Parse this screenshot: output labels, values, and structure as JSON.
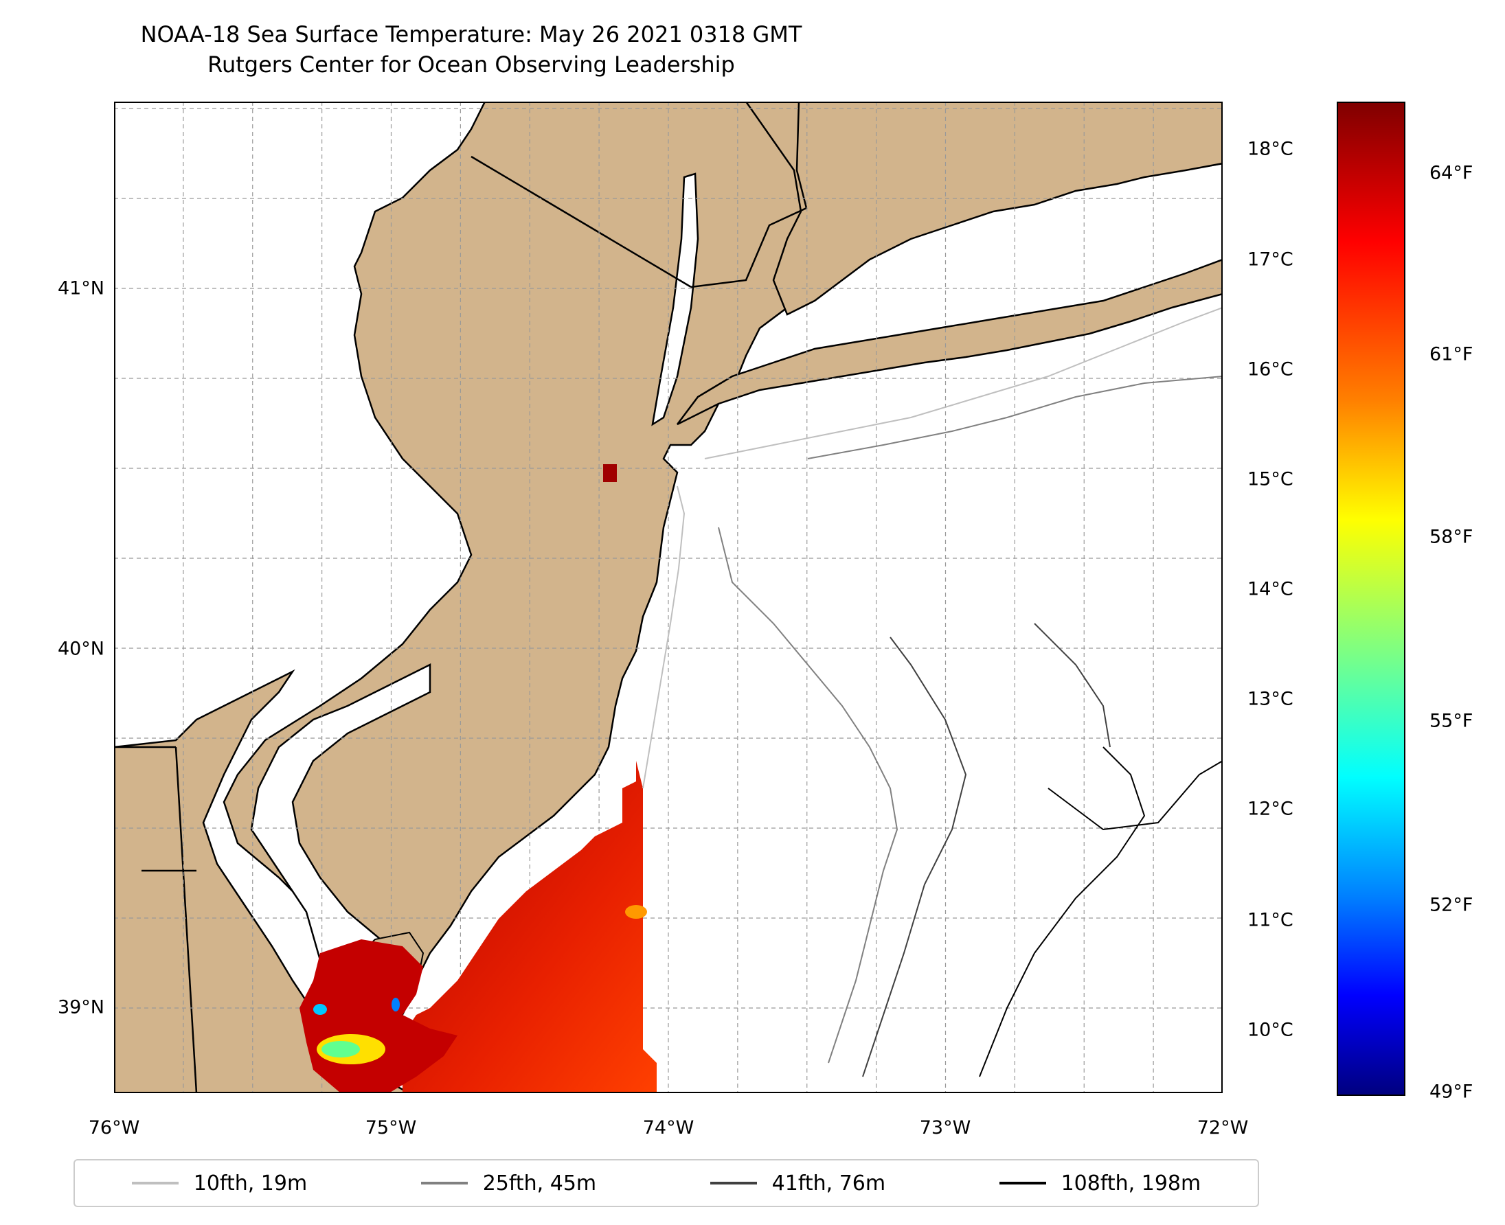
{
  "title": {
    "line1": "NOAA-18 Sea Surface Temperature: May 26 2021 0318 GMT",
    "line2": "Rutgers Center for Ocean Observing Leadership"
  },
  "map": {
    "land_color": "#d2b48c",
    "water_color": "#ffffff",
    "lon_range": [
      -76,
      -72
    ],
    "lat_range": [
      38.7,
      41.5
    ],
    "lon_ticks": [
      "76°W",
      "75°W",
      "74°W",
      "73°W",
      "72°W"
    ],
    "lat_ticks": [
      "41°N",
      "40°N",
      "39°N"
    ]
  },
  "colorbar": {
    "colormap": "jet",
    "celsius_ticks": [
      "18°C",
      "17°C",
      "16°C",
      "15°C",
      "14°C",
      "13°C",
      "12°C",
      "11°C",
      "10°C"
    ],
    "fahrenheit_ticks": [
      "64°F",
      "61°F",
      "58°F",
      "55°F",
      "52°F",
      "49°F"
    ]
  },
  "legend": {
    "items": [
      {
        "label": "10fth, 19m",
        "color": "#bfbfbf"
      },
      {
        "label": "25fth, 45m",
        "color": "#808080"
      },
      {
        "label": "41fth, 76m",
        "color": "#404040"
      },
      {
        "label": "108fth, 198m",
        "color": "#000000"
      }
    ]
  }
}
